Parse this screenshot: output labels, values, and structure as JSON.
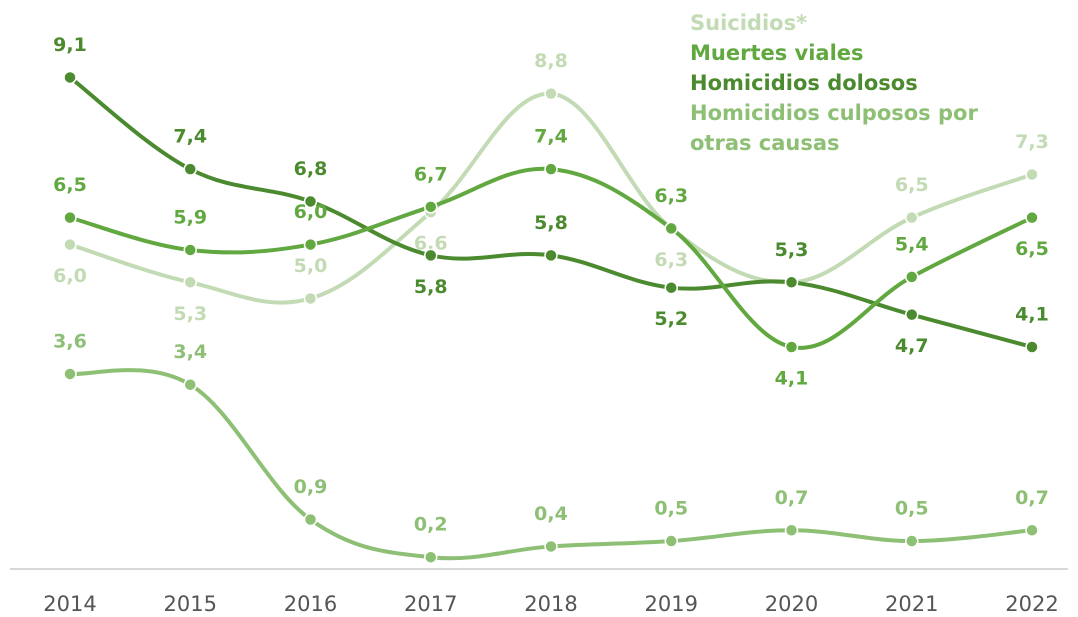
{
  "chart_data": {
    "type": "line",
    "categories": [
      "2014",
      "2015",
      "2016",
      "2017",
      "2018",
      "2019",
      "2020",
      "2021",
      "2022"
    ],
    "ylim": [
      0,
      10.5
    ],
    "series": [
      {
        "name": "Suicidios*",
        "color": "#c3dbb4",
        "values": [
          6.0,
          5.3,
          5.0,
          6.6,
          8.8,
          6.3,
          5.3,
          6.5,
          7.3
        ],
        "value_labels": [
          "6,0",
          "5,3",
          "5,0",
          "6,6",
          "8,8",
          "6,3",
          "5,3",
          "6,5",
          "7,3"
        ]
      },
      {
        "name": "Muertes viales",
        "color": "#62a840",
        "values": [
          6.5,
          5.9,
          6.0,
          6.7,
          7.4,
          6.3,
          4.1,
          5.4,
          6.5
        ],
        "value_labels": [
          "6,5",
          "5,9",
          "6,0",
          "6,7",
          "7,4",
          "6,3",
          "4,1",
          "5,4",
          "6,5"
        ]
      },
      {
        "name": "Homicidios dolosos",
        "color": "#4b8a2f",
        "values": [
          9.1,
          7.4,
          6.8,
          5.8,
          5.8,
          5.2,
          5.3,
          4.7,
          4.1
        ],
        "value_labels": [
          "9,1",
          "7,4",
          "6,8",
          "5,8",
          "5,8",
          "5,2",
          "5,3",
          "4,7",
          "4,1"
        ]
      },
      {
        "name": "Homicidios culposos por otras causas",
        "color": "#8dbf75",
        "values": [
          3.6,
          3.4,
          0.9,
          0.2,
          0.4,
          0.5,
          0.7,
          0.5,
          0.7
        ],
        "value_labels": [
          "3,6",
          "3,4",
          "0,9",
          "0,2",
          "0,4",
          "0,5",
          "0,7",
          "0,5",
          "0,7"
        ]
      }
    ]
  }
}
